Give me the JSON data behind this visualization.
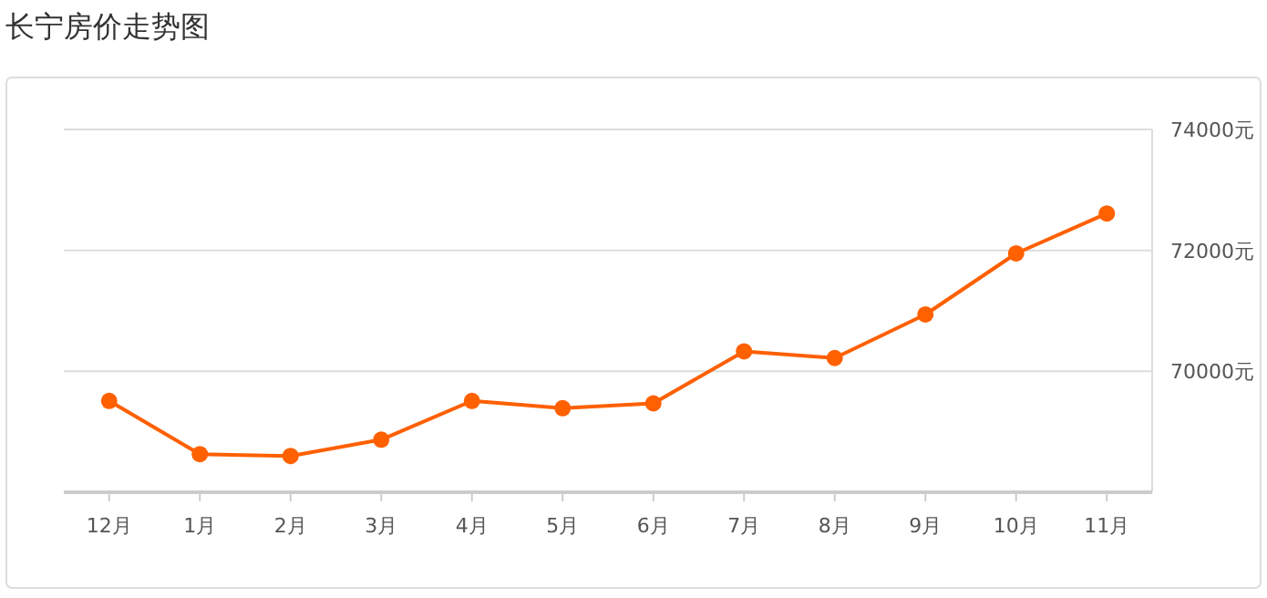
{
  "chart_data": {
    "type": "line",
    "title": "长宁房价走势图",
    "categories": [
      "12月",
      "1月",
      "2月",
      "3月",
      "4月",
      "5月",
      "6月",
      "7月",
      "8月",
      "9月",
      "10月",
      "11月"
    ],
    "series": [
      {
        "color": "#ff6000",
        "values": [
          69510,
          68630,
          68600,
          68870,
          69510,
          69390,
          69470,
          70330,
          70220,
          70940,
          71950,
          72610
        ]
      }
    ],
    "ylim": [
      68000,
      74000
    ],
    "yticks": [
      {
        "value": 70000,
        "label": "70000元"
      },
      {
        "value": 72000,
        "label": "72000元"
      },
      {
        "value": 74000,
        "label": "74000元"
      }
    ],
    "grid": "y",
    "marker": "circle",
    "line_style": "solid"
  }
}
